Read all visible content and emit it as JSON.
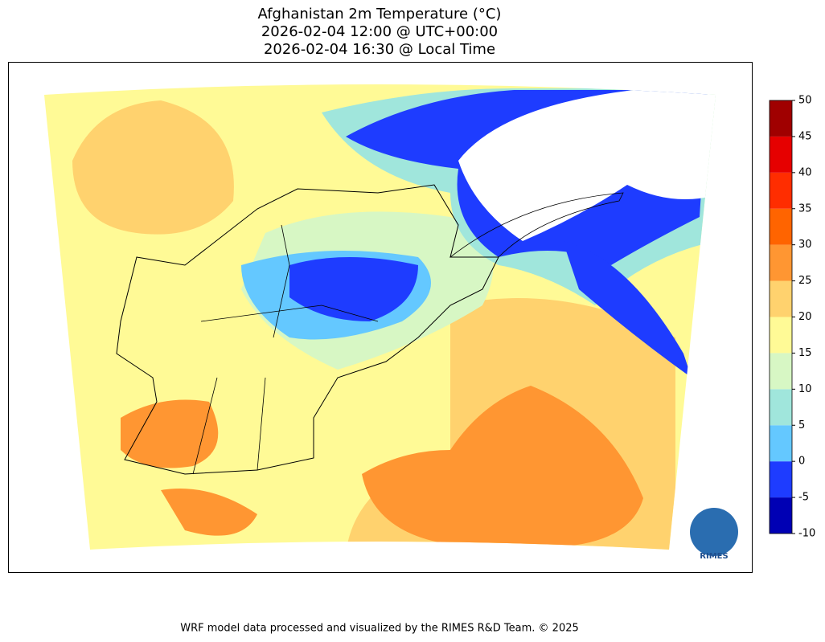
{
  "title": [
    "Afghanistan 2m Temperature (°C)",
    "2026-02-04 12:00 @ UTC+00:00",
    "2026-02-04 16:30 @ Local Time"
  ],
  "colorbar": {
    "levels": [
      -10,
      -5,
      0,
      5,
      10,
      15,
      20,
      25,
      30,
      35,
      40,
      45,
      50
    ],
    "colors": [
      "#0000b4",
      "#1e3cff",
      "#64c8ff",
      "#a0e6dc",
      "#d7f7c4",
      "#fffa96",
      "#ffd26e",
      "#ff9632",
      "#ff6400",
      "#ff2d00",
      "#e60000",
      "#a00000"
    ]
  },
  "logo": {
    "text": "RIMES"
  },
  "footer": "WRF model data processed and visualized by the RIMES R&D Team. © 2025"
}
